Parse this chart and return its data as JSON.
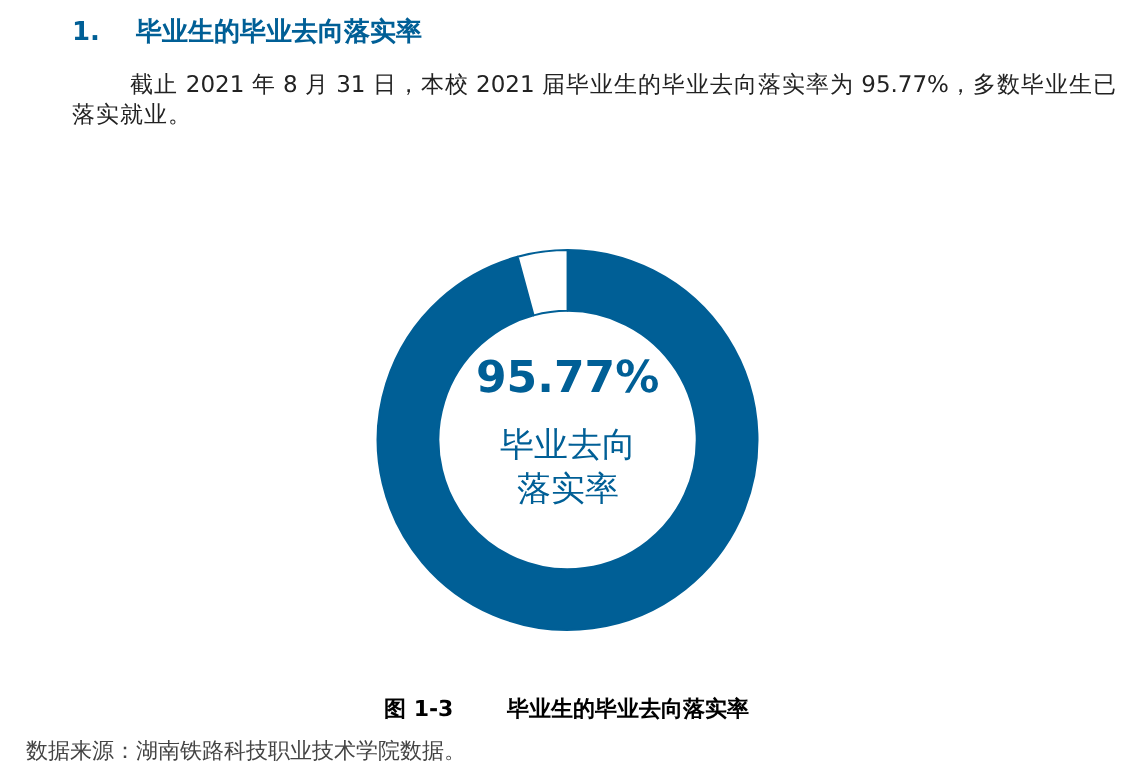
{
  "chart_data": {
    "type": "donut",
    "title": "1.    毕业生的毕业去向落实率",
    "subtitle": "        截止 2021 年 8 月 31 日，本校 2021 届毕业生的毕业去向落实率为 95.77%，多数毕业生已落实就业。",
    "categories": [
      null,
      null
    ],
    "values": [
      95.77,
      4.23
    ],
    "colors": [
      "#005f96",
      "#ffffff"
    ],
    "legend": false,
    "annotations": [
      "95.77%",
      "毕业去向落实率",
      "图 1-3       毕业生的毕业去向落实率",
      "数据来源：湖南铁路科技职业技术学院数据。"
    ]
  }
}
